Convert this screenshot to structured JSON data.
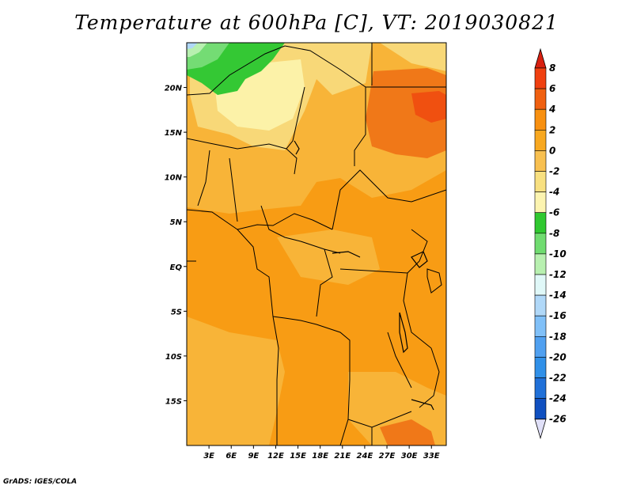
{
  "title": "Temperature at 600hPa [C], VT: 2019030821",
  "credit": "GrADS: IGES/COLA",
  "map": {
    "lon_range": [
      0,
      35
    ],
    "lat_range": [
      -20,
      25
    ],
    "lat_ticks": [
      {
        "lat": 20,
        "label": "20N"
      },
      {
        "lat": 15,
        "label": "15N"
      },
      {
        "lat": 10,
        "label": "10N"
      },
      {
        "lat": 5,
        "label": "5N"
      },
      {
        "lat": 0,
        "label": "EQ"
      },
      {
        "lat": -5,
        "label": "5S"
      },
      {
        "lat": -10,
        "label": "10S"
      },
      {
        "lat": -15,
        "label": "15S"
      }
    ],
    "lon_ticks": [
      {
        "lon": 3,
        "label": "3E"
      },
      {
        "lon": 6,
        "label": "6E"
      },
      {
        "lon": 9,
        "label": "9E"
      },
      {
        "lon": 12,
        "label": "12E"
      },
      {
        "lon": 15,
        "label": "15E"
      },
      {
        "lon": 18,
        "label": "18E"
      },
      {
        "lon": 21,
        "label": "21E"
      },
      {
        "lon": 24,
        "label": "24E"
      },
      {
        "lon": 27,
        "label": "27E"
      },
      {
        "lon": 30,
        "label": "30E"
      },
      {
        "lon": 33,
        "label": "33E"
      }
    ]
  },
  "colorbar": {
    "levels": [
      {
        "label": "8",
        "color": "#f04010"
      },
      {
        "label": "6",
        "color": "#f06010"
      },
      {
        "label": "4",
        "color": "#f89010"
      },
      {
        "label": "2",
        "color": "#f8a820"
      },
      {
        "label": "0",
        "color": "#f8c050"
      },
      {
        "label": "-2",
        "color": "#f8e080"
      },
      {
        "label": "-4",
        "color": "#fcf4b0"
      },
      {
        "label": "-6",
        "color": "#30c830"
      },
      {
        "label": "-8",
        "color": "#70dc70"
      },
      {
        "label": "-10",
        "color": "#b8f0b0"
      },
      {
        "label": "-12",
        "color": "#e0f8f8"
      },
      {
        "label": "-14",
        "color": "#b0d8f8"
      },
      {
        "label": "-16",
        "color": "#80c0f8"
      },
      {
        "label": "-18",
        "color": "#50a0f0"
      },
      {
        "label": "-20",
        "color": "#3090e8"
      },
      {
        "label": "-22",
        "color": "#2070d8"
      },
      {
        "label": "-24",
        "color": "#1050c0"
      },
      {
        "label": "-26",
        "color": "#0830a0"
      }
    ],
    "top_arrow_color": "#d82010",
    "bottom_arrow_color": "#e0e0f8",
    "last_band_color": "#000070"
  }
}
